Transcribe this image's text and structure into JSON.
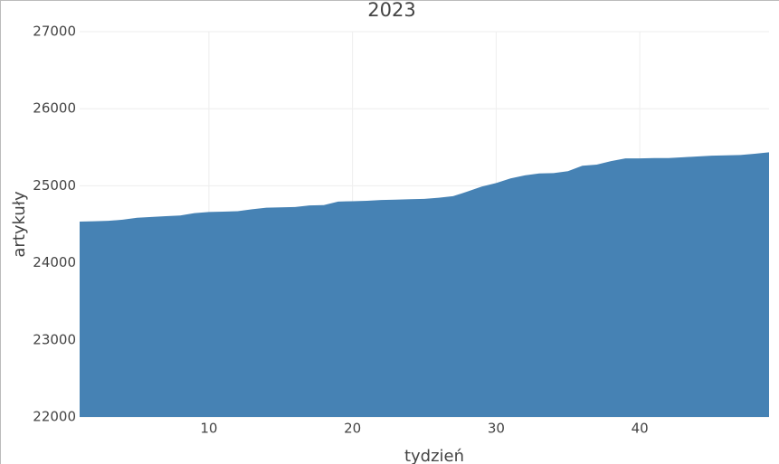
{
  "chart_data": {
    "type": "area",
    "title": "2023",
    "x_label": "tydzień",
    "y_label": "artykuły",
    "x": [
      1,
      2,
      3,
      4,
      5,
      6,
      7,
      8,
      9,
      10,
      11,
      12,
      13,
      14,
      15,
      16,
      17,
      18,
      19,
      20,
      21,
      22,
      23,
      24,
      25,
      26,
      27,
      28,
      29,
      30,
      31,
      32,
      33,
      34,
      35,
      36,
      37,
      38,
      39,
      40,
      41,
      42,
      43,
      44,
      45,
      46,
      47,
      48,
      49
    ],
    "values": [
      24535,
      24540,
      24545,
      24560,
      24585,
      24595,
      24605,
      24615,
      24645,
      24660,
      24665,
      24670,
      24695,
      24715,
      24720,
      24725,
      24745,
      24750,
      24795,
      24800,
      24805,
      24815,
      24820,
      24825,
      24830,
      24845,
      24865,
      24925,
      24990,
      25035,
      25095,
      25135,
      25160,
      25165,
      25190,
      25260,
      25275,
      25320,
      25355,
      25355,
      25360,
      25360,
      25370,
      25380,
      25390,
      25395,
      25400,
      25415,
      25435
    ],
    "color": "#4682b4",
    "xlim": [
      1,
      49
    ],
    "xticks": [
      10,
      20,
      30,
      40
    ],
    "ylim": [
      22000,
      27000
    ],
    "yticks": [
      22000,
      23000,
      24000,
      25000,
      26000,
      27000
    ],
    "grid": true
  }
}
